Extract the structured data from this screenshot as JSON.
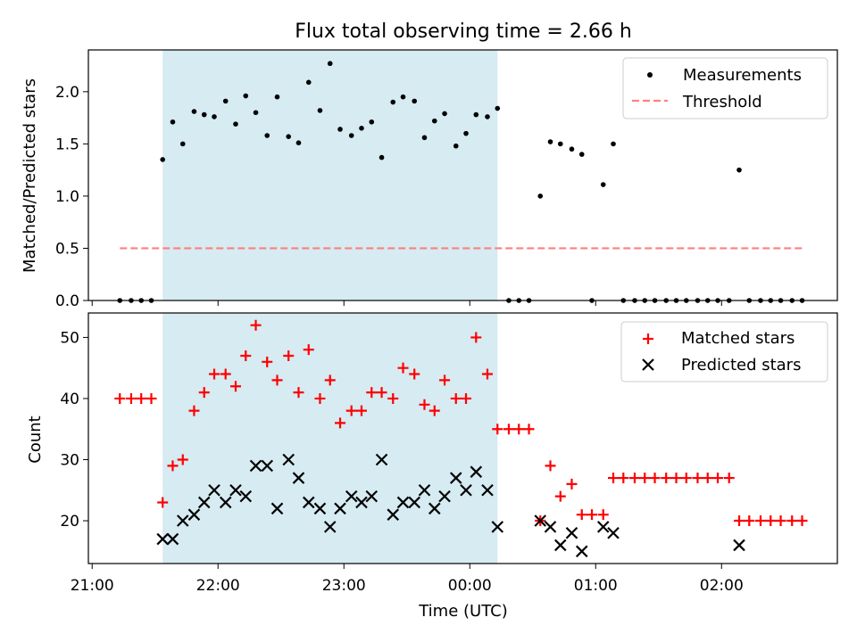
{
  "figure": {
    "title": "Flux total observing time = 2.66 h",
    "xlabel": "Time (UTC)",
    "x_tick_labels": [
      "21:00",
      "22:00",
      "23:00",
      "00:00",
      "01:00",
      "02:00"
    ],
    "shaded_interval_hours": [
      21.56,
      24.22
    ],
    "colors": {
      "shade": "#add8e6",
      "measurement": "#000000",
      "threshold": "#ff7f7f",
      "matched": "#ff0000",
      "predicted": "#000000"
    }
  },
  "chart_data": [
    {
      "type": "scatter",
      "ylabel": "Matched/Predicted stars",
      "xlim_hours": [
        20.97,
        26.92
      ],
      "ylim": [
        0,
        2.4
      ],
      "y_ticks": [
        "0.0",
        "0.5",
        "1.0",
        "1.5",
        "2.0"
      ],
      "legend_position": "top-right",
      "series": [
        {
          "name": "Measurements",
          "marker": "dot",
          "points": [
            [
              21.22,
              0
            ],
            [
              21.31,
              0
            ],
            [
              21.39,
              0
            ],
            [
              21.47,
              0
            ],
            [
              21.56,
              1.35
            ],
            [
              21.64,
              1.71
            ],
            [
              21.72,
              1.5
            ],
            [
              21.81,
              1.81
            ],
            [
              21.89,
              1.78
            ],
            [
              21.97,
              1.76
            ],
            [
              22.06,
              1.91
            ],
            [
              22.14,
              1.69
            ],
            [
              22.22,
              1.96
            ],
            [
              22.3,
              1.8
            ],
            [
              22.39,
              1.58
            ],
            [
              22.47,
              1.95
            ],
            [
              22.56,
              1.57
            ],
            [
              22.64,
              1.51
            ],
            [
              22.72,
              2.09
            ],
            [
              22.81,
              1.82
            ],
            [
              22.89,
              2.27
            ],
            [
              22.97,
              1.64
            ],
            [
              23.06,
              1.58
            ],
            [
              23.14,
              1.65
            ],
            [
              23.22,
              1.71
            ],
            [
              23.3,
              1.37
            ],
            [
              23.39,
              1.9
            ],
            [
              23.47,
              1.95
            ],
            [
              23.56,
              1.91
            ],
            [
              23.64,
              1.56
            ],
            [
              23.72,
              1.72
            ],
            [
              23.8,
              1.79
            ],
            [
              23.89,
              1.48
            ],
            [
              23.97,
              1.6
            ],
            [
              24.05,
              1.78
            ],
            [
              24.14,
              1.76
            ],
            [
              24.22,
              1.84
            ],
            [
              24.31,
              0
            ],
            [
              24.39,
              0
            ],
            [
              24.47,
              0
            ],
            [
              24.56,
              1.0
            ],
            [
              24.64,
              1.52
            ],
            [
              24.72,
              1.5
            ],
            [
              24.81,
              1.45
            ],
            [
              24.89,
              1.4
            ],
            [
              24.97,
              0
            ],
            [
              25.06,
              1.11
            ],
            [
              25.14,
              1.5
            ],
            [
              25.22,
              0
            ],
            [
              25.31,
              0
            ],
            [
              25.39,
              0
            ],
            [
              25.47,
              0
            ],
            [
              25.56,
              0
            ],
            [
              25.64,
              0
            ],
            [
              25.72,
              0
            ],
            [
              25.81,
              0
            ],
            [
              25.89,
              0
            ],
            [
              25.97,
              0
            ],
            [
              26.06,
              0
            ],
            [
              26.14,
              1.25
            ],
            [
              26.22,
              0
            ],
            [
              26.31,
              0
            ],
            [
              26.39,
              0
            ],
            [
              26.47,
              0
            ],
            [
              26.56,
              0
            ],
            [
              26.64,
              0
            ]
          ]
        },
        {
          "name": "Threshold",
          "marker": "dashed-line",
          "points": [
            [
              21.22,
              0.5
            ],
            [
              26.64,
              0.5
            ]
          ]
        }
      ]
    },
    {
      "type": "scatter",
      "ylabel": "Count",
      "xlim_hours": [
        20.97,
        26.92
      ],
      "ylim": [
        13,
        54
      ],
      "y_ticks": [
        "20",
        "30",
        "40",
        "50"
      ],
      "legend_position": "top-right",
      "series": [
        {
          "name": "Matched stars",
          "marker": "plus",
          "points": [
            [
              21.22,
              40
            ],
            [
              21.31,
              40
            ],
            [
              21.39,
              40
            ],
            [
              21.47,
              40
            ],
            [
              21.56,
              23
            ],
            [
              21.64,
              29
            ],
            [
              21.72,
              30
            ],
            [
              21.81,
              38
            ],
            [
              21.89,
              41
            ],
            [
              21.97,
              44
            ],
            [
              22.06,
              44
            ],
            [
              22.14,
              42
            ],
            [
              22.22,
              47
            ],
            [
              22.3,
              52
            ],
            [
              22.39,
              46
            ],
            [
              22.47,
              43
            ],
            [
              22.56,
              47
            ],
            [
              22.64,
              41
            ],
            [
              22.72,
              48
            ],
            [
              22.81,
              40
            ],
            [
              22.89,
              43
            ],
            [
              22.97,
              36
            ],
            [
              23.06,
              38
            ],
            [
              23.14,
              38
            ],
            [
              23.22,
              41
            ],
            [
              23.3,
              41
            ],
            [
              23.39,
              40
            ],
            [
              23.47,
              45
            ],
            [
              23.56,
              44
            ],
            [
              23.64,
              39
            ],
            [
              23.72,
              38
            ],
            [
              23.8,
              43
            ],
            [
              23.89,
              40
            ],
            [
              23.97,
              40
            ],
            [
              24.05,
              50
            ],
            [
              24.14,
              44
            ],
            [
              24.22,
              35
            ],
            [
              24.31,
              35
            ],
            [
              24.39,
              35
            ],
            [
              24.47,
              35
            ],
            [
              24.56,
              20
            ],
            [
              24.64,
              29
            ],
            [
              24.72,
              24
            ],
            [
              24.81,
              26
            ],
            [
              24.89,
              21
            ],
            [
              24.97,
              21
            ],
            [
              25.06,
              21
            ],
            [
              25.14,
              27
            ],
            [
              25.22,
              27
            ],
            [
              25.31,
              27
            ],
            [
              25.39,
              27
            ],
            [
              25.47,
              27
            ],
            [
              25.56,
              27
            ],
            [
              25.64,
              27
            ],
            [
              25.72,
              27
            ],
            [
              25.81,
              27
            ],
            [
              25.89,
              27
            ],
            [
              25.97,
              27
            ],
            [
              26.06,
              27
            ],
            [
              26.14,
              20
            ],
            [
              26.22,
              20
            ],
            [
              26.31,
              20
            ],
            [
              26.39,
              20
            ],
            [
              26.47,
              20
            ],
            [
              26.56,
              20
            ],
            [
              26.64,
              20
            ]
          ]
        },
        {
          "name": "Predicted stars",
          "marker": "x",
          "points": [
            [
              21.56,
              17
            ],
            [
              21.64,
              17
            ],
            [
              21.72,
              20
            ],
            [
              21.81,
              21
            ],
            [
              21.89,
              23
            ],
            [
              21.97,
              25
            ],
            [
              22.06,
              23
            ],
            [
              22.14,
              25
            ],
            [
              22.22,
              24
            ],
            [
              22.3,
              29
            ],
            [
              22.39,
              29
            ],
            [
              22.47,
              22
            ],
            [
              22.56,
              30
            ],
            [
              22.64,
              27
            ],
            [
              22.72,
              23
            ],
            [
              22.81,
              22
            ],
            [
              22.89,
              19
            ],
            [
              22.97,
              22
            ],
            [
              23.06,
              24
            ],
            [
              23.14,
              23
            ],
            [
              23.22,
              24
            ],
            [
              23.3,
              30
            ],
            [
              23.39,
              21
            ],
            [
              23.47,
              23
            ],
            [
              23.56,
              23
            ],
            [
              23.64,
              25
            ],
            [
              23.72,
              22
            ],
            [
              23.8,
              24
            ],
            [
              23.89,
              27
            ],
            [
              23.97,
              25
            ],
            [
              24.05,
              28
            ],
            [
              24.14,
              25
            ],
            [
              24.22,
              19
            ],
            [
              24.56,
              20
            ],
            [
              24.64,
              19
            ],
            [
              24.72,
              16
            ],
            [
              24.81,
              18
            ],
            [
              24.89,
              15
            ],
            [
              25.06,
              19
            ],
            [
              25.14,
              18
            ],
            [
              26.14,
              16
            ]
          ]
        }
      ]
    }
  ]
}
